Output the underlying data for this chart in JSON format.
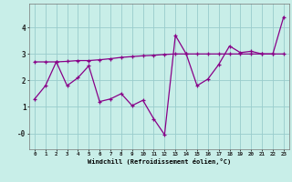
{
  "xlabel": "Windchill (Refroidissement éolien,°C)",
  "background_color": "#c8eee8",
  "line_color": "#880088",
  "grid_color": "#99cccc",
  "x_data": [
    0,
    1,
    2,
    3,
    4,
    5,
    6,
    7,
    8,
    9,
    10,
    11,
    12,
    13,
    14,
    15,
    16,
    17,
    18,
    19,
    20,
    21,
    22,
    23
  ],
  "y_jagged": [
    1.3,
    1.8,
    2.7,
    1.8,
    2.1,
    2.55,
    1.2,
    1.3,
    1.5,
    1.05,
    1.25,
    0.55,
    -0.05,
    3.7,
    3.0,
    1.8,
    2.05,
    2.6,
    3.3,
    3.05,
    3.1,
    3.0,
    3.0,
    4.4
  ],
  "y_flat": [
    2.7,
    2.7,
    2.7,
    2.72,
    2.75,
    2.75,
    2.78,
    2.82,
    2.87,
    2.9,
    2.93,
    2.95,
    2.98,
    3.0,
    3.0,
    3.0,
    3.0,
    3.0,
    3.0,
    3.0,
    3.0,
    3.0,
    3.0,
    3.0
  ],
  "xlim": [
    -0.5,
    23.5
  ],
  "ylim": [
    -0.6,
    4.9
  ],
  "yticks": [
    0,
    1,
    2,
    3,
    4
  ],
  "ytick_labels": [
    "-0",
    "1",
    "2",
    "3",
    "4"
  ],
  "xticks": [
    0,
    1,
    2,
    3,
    4,
    5,
    6,
    7,
    8,
    9,
    10,
    11,
    12,
    13,
    14,
    15,
    16,
    17,
    18,
    19,
    20,
    21,
    22,
    23
  ]
}
